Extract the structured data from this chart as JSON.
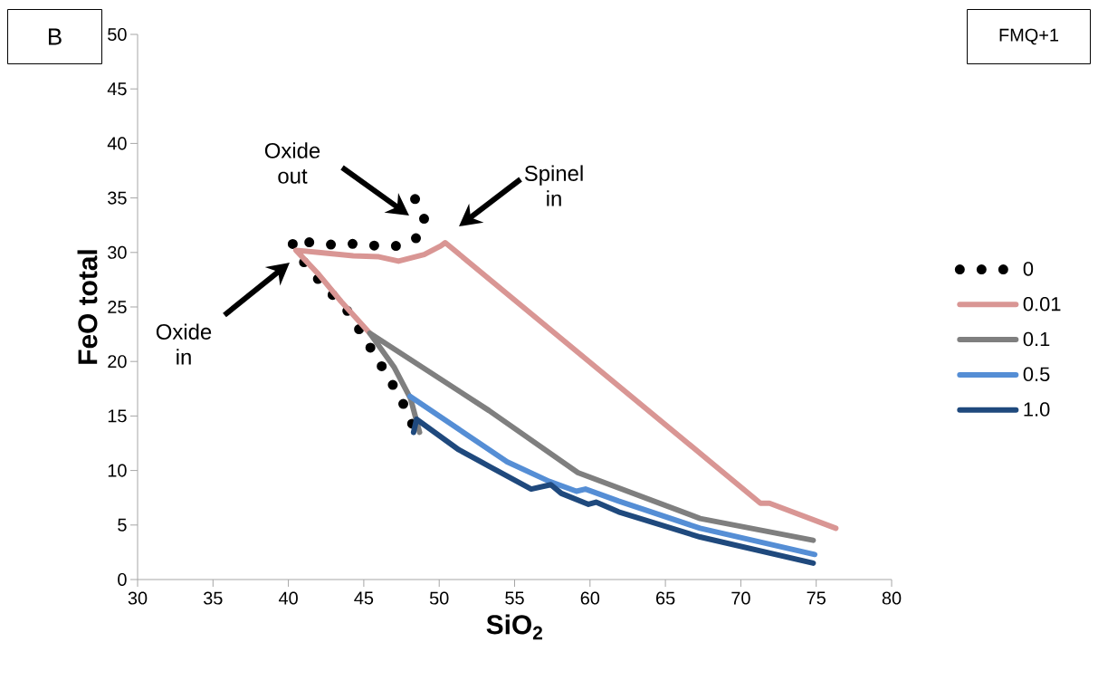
{
  "chart_data": {
    "type": "line",
    "xlabel": "SiO$_{2}$",
    "ylabel": "FeO total",
    "xlim": [
      30,
      80
    ],
    "xticks": [
      30,
      35,
      40,
      45,
      50,
      55,
      60,
      65,
      70,
      75,
      80
    ],
    "ylim": [
      0,
      50
    ],
    "yticks": [
      0,
      5,
      10,
      15,
      20,
      25,
      30,
      35,
      40,
      45,
      50
    ],
    "legend": "right",
    "marker": "none",
    "series": [
      {
        "name": "0",
        "color": "#000000",
        "line_style": "dotted",
        "x": [
          48.4,
          49.0,
          48.6,
          47.35,
          45.9,
          44.5,
          43.0,
          41.6,
          40.2,
          40.5,
          42.0,
          44.0,
          46.0,
          47.5,
          48.1,
          48.6
        ],
        "values": [
          34.9,
          33.1,
          31.4,
          30.6,
          30.6,
          30.8,
          30.7,
          30.9,
          31.1,
          30.0,
          27.5,
          24.5,
          20.0,
          16.5,
          14.5,
          13.5
        ]
      },
      {
        "name": "0.01",
        "color": "#d99694",
        "line_style": "solid",
        "x": [
          45.4,
          43.5,
          42.0,
          40.5,
          42.0,
          44.3,
          46.0,
          47.3,
          49.0,
          50.1,
          50.4,
          71.3,
          71.9,
          76.3
        ],
        "values": [
          22.6,
          25.5,
          28.0,
          30.2,
          30.0,
          29.7,
          29.6,
          29.2,
          29.8,
          30.6,
          30.9,
          7.0,
          7.0,
          4.7
        ]
      },
      {
        "name": "0.1",
        "color": "#7f7f7f",
        "line_style": "solid",
        "x": [
          48.7,
          48.1,
          47.0,
          45.4,
          53.3,
          59.2,
          67.3,
          74.8
        ],
        "values": [
          13.5,
          16.6,
          19.5,
          22.6,
          15.5,
          9.8,
          5.6,
          3.6
        ]
      },
      {
        "name": "0.5",
        "color": "#558ed5",
        "line_style": "solid",
        "x": [
          48.07,
          54.5,
          57.3,
          59.1,
          59.7,
          61.9,
          67.3,
          74.9
        ],
        "values": [
          16.8,
          10.8,
          9.0,
          8.1,
          8.3,
          7.2,
          4.7,
          2.3
        ]
      },
      {
        "name": "1.0",
        "color": "#1f497d",
        "line_style": "solid",
        "x": [
          48.3,
          48.5,
          51.3,
          53.3,
          56.1,
          57.4,
          58.1,
          59.9,
          60.4,
          61.9,
          67.3,
          74.8
        ],
        "values": [
          13.5,
          14.7,
          11.9,
          10.4,
          8.3,
          8.7,
          7.9,
          6.9,
          7.1,
          6.2,
          3.9,
          1.5
        ]
      }
    ],
    "annotations": [
      "B",
      "FMQ+1",
      "Oxide in",
      "Oxide out",
      "Spinel in"
    ]
  }
}
